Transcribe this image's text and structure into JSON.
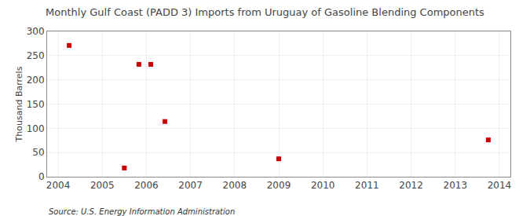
{
  "chart_data": {
    "type": "scatter",
    "title": "Monthly Gulf Coast (PADD 3) Imports from Uruguay of Gasoline Blending Components",
    "ylabel": "Thousand Barrels",
    "annotations": [
      "Source: U.S. Energy Information Administration"
    ],
    "x": [
      2004.25,
      2005.5,
      2005.83,
      2006.1,
      2006.42,
      2009.0,
      2013.75
    ],
    "values": [
      271,
      18,
      232,
      232,
      114,
      37,
      76
    ],
    "color": "#cc0000",
    "marker": "square",
    "xlim": [
      2003.75,
      2014.25
    ],
    "ylim": [
      0,
      300
    ],
    "xticks": [
      2004,
      2005,
      2006,
      2007,
      2008,
      2009,
      2010,
      2011,
      2012,
      2013,
      2014
    ],
    "yticks": [
      0,
      50,
      100,
      150,
      200,
      250,
      300
    ],
    "grid": true
  }
}
